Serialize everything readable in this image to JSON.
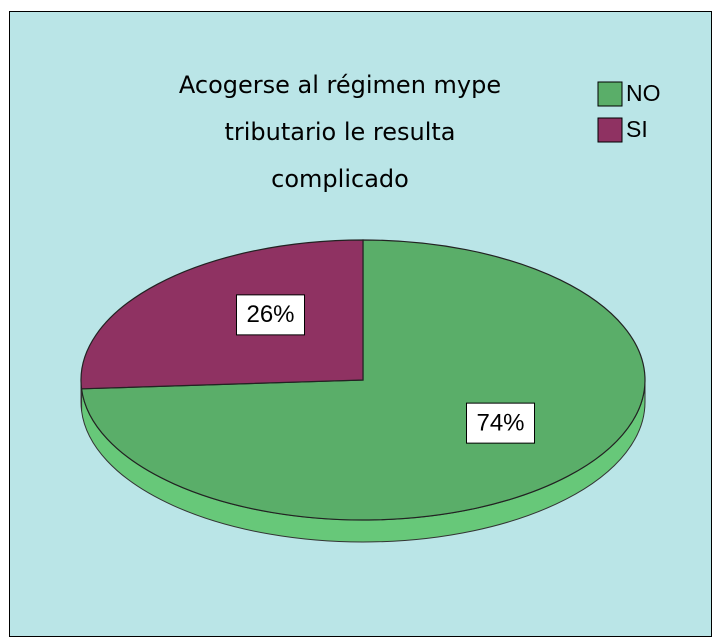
{
  "chart_data": {
    "type": "pie3d",
    "title": "Acogerse al régimen mype tributario le resulta complicado",
    "categories": [
      "NO",
      "SI"
    ],
    "values": [
      74,
      26
    ],
    "value_labels": [
      "74%",
      "26%"
    ],
    "colors": [
      "#5aae69",
      "#8f3262"
    ],
    "legend": "top-right"
  }
}
